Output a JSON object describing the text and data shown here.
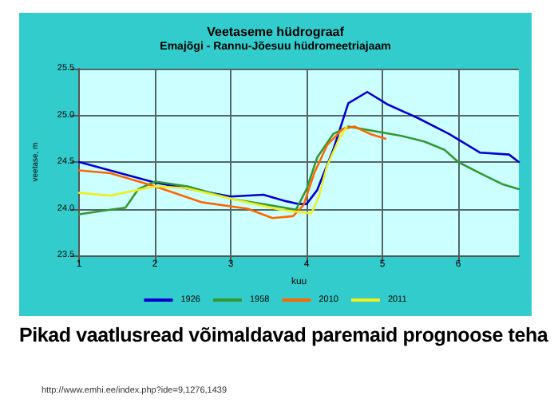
{
  "chart_data": {
    "type": "line",
    "title": "Veetaseme hüdrograaf",
    "subtitle": "Emajõgi - Rannu-Jõesuu hüdromeetriajaam",
    "xlabel": "kuu",
    "ylabel": "veetase, m",
    "annotations": [
      "Pikad vaatlusread võimaldavad paremaid prognoose teha",
      "http://www.emhi.ee/index.php?ide=9,1276,1439"
    ],
    "xlim": [
      1,
      6.8
    ],
    "xticks": [
      1,
      2,
      3,
      4,
      5,
      6
    ],
    "ylim": [
      23.5,
      25.5
    ],
    "yticks": [
      23.5,
      {
        "value": 24,
        "label": "24.0"
      },
      24.5,
      {
        "value": 25,
        "label": "25.0"
      },
      25.5
    ],
    "grid": true,
    "legend": "bottom",
    "marker": "none",
    "line_style": "solid",
    "series": [
      {
        "name": "1926",
        "color": "#0000cc",
        "x": [
          1,
          2,
          3,
          3.43,
          3.73,
          3.9,
          4.0,
          4.14,
          4.35,
          4.55,
          4.8,
          5.06,
          5.47,
          5.88,
          6.29,
          6.67,
          6.8
        ],
        "values": [
          24.5,
          24.28,
          24.13,
          24.15,
          24.08,
          24.05,
          24.05,
          24.2,
          24.63,
          25.13,
          25.25,
          25.12,
          24.97,
          24.8,
          24.6,
          24.58,
          24.5
        ]
      },
      {
        "name": "1958",
        "color": "#339933",
        "x": [
          1,
          1.41,
          1.61,
          1.78,
          2,
          2.43,
          3.04,
          3.65,
          3.86,
          4.0,
          4.14,
          4.35,
          4.55,
          4.76,
          5.25,
          5.55,
          5.82,
          6,
          6.29,
          6.59,
          6.8
        ],
        "values": [
          23.94,
          23.99,
          24.01,
          24.21,
          24.29,
          24.24,
          24.1,
          24.02,
          23.99,
          24.21,
          24.55,
          24.8,
          24.88,
          24.85,
          24.78,
          24.72,
          24.63,
          24.5,
          24.38,
          24.26,
          24.21
        ]
      },
      {
        "name": "2010",
        "color": "#ff6600",
        "x": [
          1,
          1.41,
          2,
          2.61,
          3.22,
          3.55,
          3.82,
          3.96,
          4.1,
          4.27,
          4.47,
          4.63,
          4.84,
          5.04
        ],
        "values": [
          24.41,
          24.38,
          24.24,
          24.07,
          24.0,
          23.9,
          23.92,
          24.04,
          24.38,
          24.68,
          24.85,
          24.88,
          24.8,
          24.75
        ]
      },
      {
        "name": "2011",
        "color": "#eeee22",
        "x": [
          1,
          1.41,
          2,
          2.41,
          3.04,
          3.65,
          4.06,
          4.16,
          4.27,
          4.43,
          4.53
        ],
        "values": [
          24.17,
          24.14,
          24.24,
          24.22,
          24.1,
          23.99,
          23.95,
          24.12,
          24.46,
          24.75,
          24.88
        ]
      }
    ]
  }
}
